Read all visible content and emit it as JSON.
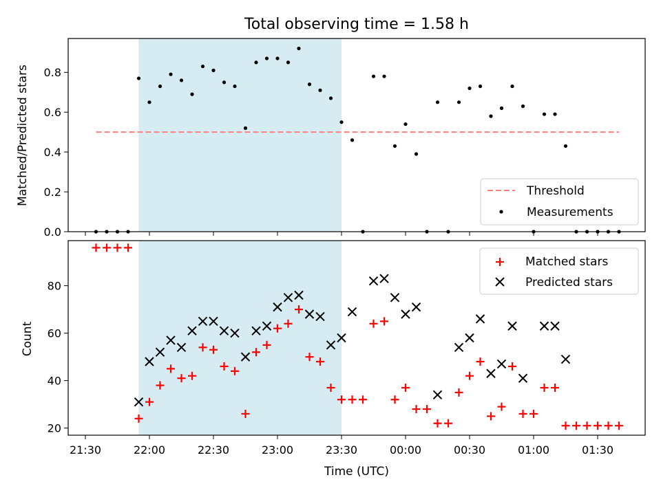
{
  "chart_data": {
    "type": "scatter",
    "title": "Total observing time = 1.58 h",
    "xlabel": "Time (UTC)",
    "x_ticks": [
      "21:30",
      "22:00",
      "22:30",
      "23:00",
      "23:30",
      "00:00",
      "00:30",
      "01:00",
      "01:30"
    ],
    "shaded_region": {
      "start": "21:55",
      "end": "23:30",
      "color": "#add8e6"
    },
    "colors": {
      "threshold": "#ff7f7f",
      "measurements": "#000000",
      "matched": "#ff0000",
      "predicted": "#000000",
      "shade": "#add8e6"
    },
    "panels": [
      {
        "ylabel": "Matched/Predicted stars",
        "ylim": [
          0,
          0.97
        ],
        "yticks": [
          "0.0",
          "0.2",
          "0.4",
          "0.6",
          "0.8"
        ],
        "legend": "bottom-right",
        "threshold": {
          "name": "Threshold",
          "value": 0.5,
          "x_range": [
            "21:35",
            "01:40"
          ]
        },
        "series": [
          {
            "name": "Measurements",
            "marker": "dot",
            "x": [
              "21:35",
              "21:40",
              "21:45",
              "21:50",
              "21:55",
              "22:00",
              "22:05",
              "22:10",
              "22:15",
              "22:20",
              "22:25",
              "22:30",
              "22:35",
              "22:40",
              "22:45",
              "22:50",
              "22:55",
              "23:00",
              "23:05",
              "23:10",
              "23:15",
              "23:20",
              "23:25",
              "23:30",
              "23:35",
              "23:40",
              "23:45",
              "23:50",
              "23:55",
              "00:00",
              "00:05",
              "00:10",
              "00:15",
              "00:20",
              "00:25",
              "00:30",
              "00:35",
              "00:40",
              "00:45",
              "00:50",
              "00:55",
              "01:00",
              "01:05",
              "01:10",
              "01:15",
              "01:20",
              "01:25",
              "01:30",
              "01:35",
              "01:40"
            ],
            "y": [
              0,
              0,
              0,
              0,
              0.77,
              0.65,
              0.73,
              0.79,
              0.76,
              0.69,
              0.83,
              0.81,
              0.75,
              0.73,
              0.52,
              0.85,
              0.87,
              0.87,
              0.85,
              0.92,
              0.74,
              0.71,
              0.67,
              0.55,
              0.46,
              0,
              0.78,
              0.78,
              0.43,
              0.54,
              0.39,
              0,
              0.65,
              0,
              0.65,
              0.72,
              0.73,
              0.58,
              0.62,
              0.73,
              0.63,
              0,
              0.59,
              0.59,
              0.43,
              0,
              0,
              0,
              0,
              0
            ]
          }
        ]
      },
      {
        "ylabel": "Count",
        "ylim": [
          17,
          99
        ],
        "yticks": [
          "20",
          "40",
          "60",
          "80"
        ],
        "legend": "top-right",
        "series": [
          {
            "name": "Matched stars",
            "marker": "plus",
            "x": [
              "21:35",
              "21:40",
              "21:45",
              "21:50",
              "21:55",
              "22:00",
              "22:05",
              "22:10",
              "22:15",
              "22:20",
              "22:25",
              "22:30",
              "22:35",
              "22:40",
              "22:45",
              "22:50",
              "22:55",
              "23:00",
              "23:05",
              "23:10",
              "23:15",
              "23:20",
              "23:25",
              "23:30",
              "23:35",
              "23:40",
              "23:45",
              "23:50",
              "23:55",
              "00:00",
              "00:05",
              "00:10",
              "00:15",
              "00:20",
              "00:25",
              "00:30",
              "00:35",
              "00:40",
              "00:45",
              "00:50",
              "00:55",
              "01:00",
              "01:05",
              "01:10",
              "01:15",
              "01:20",
              "01:25",
              "01:30",
              "01:35",
              "01:40"
            ],
            "y": [
              96,
              96,
              96,
              96,
              24,
              31,
              38,
              45,
              41,
              42,
              54,
              53,
              46,
              44,
              26,
              52,
              55,
              62,
              64,
              70,
              50,
              48,
              37,
              32,
              32,
              32,
              64,
              65,
              32,
              37,
              28,
              28,
              22,
              22,
              35,
              42,
              48,
              25,
              29,
              46,
              26,
              26,
              37,
              37,
              21,
              21,
              21,
              21,
              21,
              21
            ]
          },
          {
            "name": "Predicted stars",
            "marker": "x",
            "x": [
              "21:55",
              "22:00",
              "22:05",
              "22:10",
              "22:15",
              "22:20",
              "22:25",
              "22:30",
              "22:35",
              "22:40",
              "22:45",
              "22:50",
              "22:55",
              "23:00",
              "23:05",
              "23:10",
              "23:15",
              "23:20",
              "23:25",
              "23:30",
              "23:35",
              "23:45",
              "23:50",
              "23:55",
              "00:00",
              "00:05",
              "00:15",
              "00:25",
              "00:30",
              "00:35",
              "00:40",
              "00:45",
              "00:50",
              "00:55",
              "01:05",
              "01:10",
              "01:15"
            ],
            "y": [
              31,
              48,
              52,
              57,
              54,
              61,
              65,
              65,
              61,
              60,
              50,
              61,
              63,
              71,
              75,
              76,
              68,
              67,
              55,
              58,
              69,
              82,
              83,
              75,
              68,
              71,
              34,
              54,
              58,
              66,
              43,
              47,
              63,
              41,
              63,
              63,
              49
            ]
          }
        ]
      }
    ]
  }
}
